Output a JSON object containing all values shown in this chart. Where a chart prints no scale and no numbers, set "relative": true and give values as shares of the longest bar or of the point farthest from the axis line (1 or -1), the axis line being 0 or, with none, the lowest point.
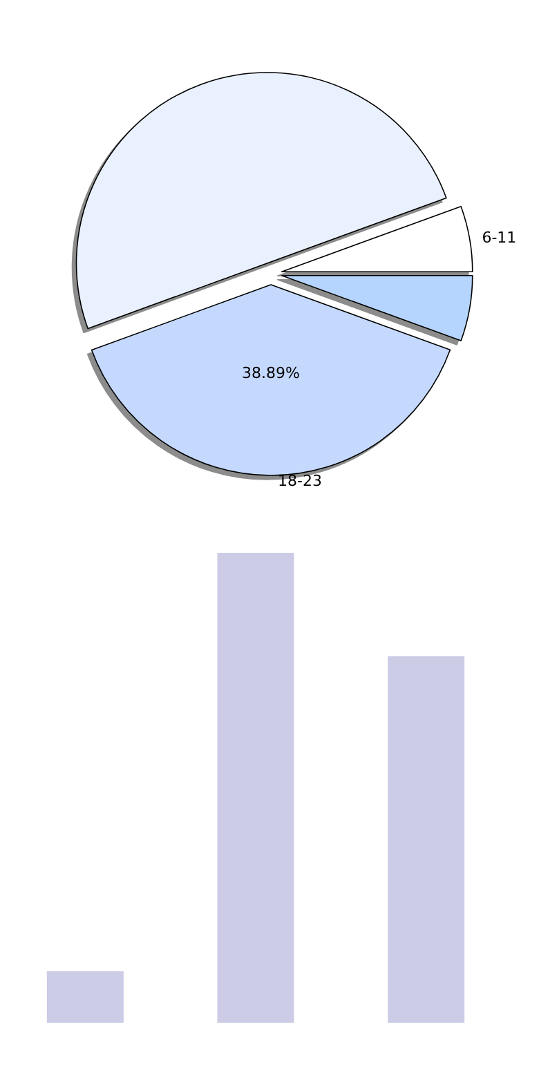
{
  "chart_data": [
    {
      "type": "pie",
      "categories": [
        "6-11",
        null,
        "18-23",
        null
      ],
      "values": [
        5.56,
        50,
        38.89,
        5.55
      ],
      "colors": [
        "#ffffff",
        "#eaf1fe",
        "#c5d9fe",
        "#b5d5fe"
      ],
      "value_labels": [
        null,
        null,
        "38.89%",
        null
      ]
    },
    {
      "type": "bar",
      "relative": true,
      "categories": [
        null,
        null,
        null
      ],
      "values": [
        0.11,
        1,
        0.78
      ],
      "color": "#cccce6"
    }
  ]
}
